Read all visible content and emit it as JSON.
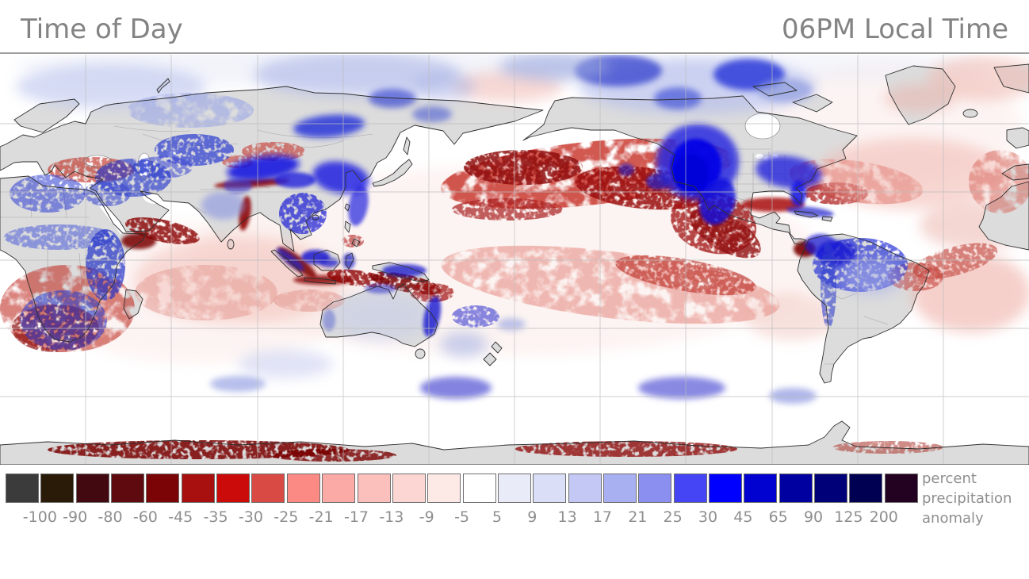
{
  "header": {
    "title": "Time of Day",
    "time_label": "06PM Local Time"
  },
  "colorbar": {
    "boundary_labels": [
      "-100",
      "-90",
      "-80",
      "-60",
      "-45",
      "-35",
      "-30",
      "-25",
      "-21",
      "-17",
      "-13",
      "-9",
      "-5",
      "5",
      "9",
      "13",
      "17",
      "21",
      "25",
      "30",
      "45",
      "65",
      "90",
      "125",
      "200"
    ],
    "cell_colors": [
      "#3b3b3b",
      "#2a1a08",
      "#420a10",
      "#5e0a0e",
      "#7b0407",
      "#a81010",
      "#cb0a0a",
      "#d94a44",
      "#fb8a84",
      "#fcaaa6",
      "#fcc0bc",
      "#fcd6d2",
      "#fdeae7",
      "#ffffff",
      "#e9ebf8",
      "#dadef7",
      "#c3c9f4",
      "#a9b0f2",
      "#8b90f0",
      "#4545f5",
      "#0000ff",
      "#0101d0",
      "#0000a0",
      "#000078",
      "#000052",
      "#230120"
    ],
    "caption_lines": [
      "percent",
      "precipitation",
      "anomaly"
    ],
    "caption": "percent precipitation anomaly"
  },
  "chart_data": {
    "type": "heatmap",
    "title": "Time of Day",
    "subtitle": "06PM Local Time",
    "legend_label": "percent precipitation anomaly",
    "units": "percent",
    "scale_boundaries": [
      -100,
      -90,
      -80,
      -60,
      -45,
      -35,
      -30,
      -25,
      -21,
      -17,
      -13,
      -9,
      -5,
      5,
      9,
      13,
      17,
      21,
      25,
      30,
      45,
      65,
      90,
      125,
      200
    ],
    "scale_colors": [
      "#3b3b3b",
      "#2a1a08",
      "#420a10",
      "#5e0a0e",
      "#7b0407",
      "#a81010",
      "#cb0a0a",
      "#d94a44",
      "#fb8a84",
      "#fcaaa6",
      "#fcc0bc",
      "#fcd6d2",
      "#fdeae7",
      "#ffffff",
      "#e9ebf8",
      "#dadef7",
      "#c3c9f4",
      "#a9b0f2",
      "#8b90f0",
      "#4545f5",
      "#0000ff",
      "#0101d0",
      "#0000a0",
      "#000078",
      "#000052",
      "#230120"
    ],
    "projection": "equirectangular world map, Pacific-centered (left edge 0E)",
    "gridlines": true,
    "grid_spacing_degrees": 30
  }
}
